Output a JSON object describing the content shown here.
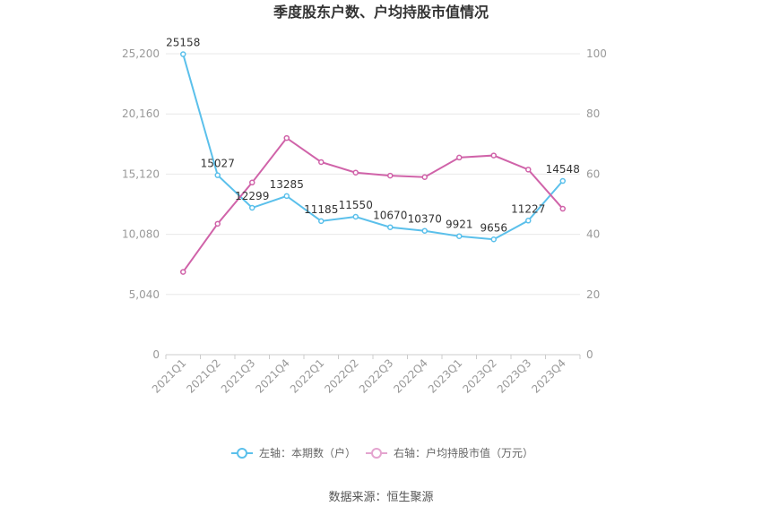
{
  "chart_data": {
    "type": "line",
    "title": "季度股东户数、户均持股市值情况",
    "categories": [
      "2021Q1",
      "2021Q2",
      "2021Q3",
      "2021Q4",
      "2022Q1",
      "2022Q2",
      "2022Q3",
      "2022Q4",
      "2023Q1",
      "2023Q2",
      "2023Q3",
      "2023Q4"
    ],
    "y_left": {
      "ticks": [
        "0",
        "5,040",
        "10,080",
        "15,120",
        "20,160",
        "25,200"
      ],
      "ylim": [
        0,
        25200
      ]
    },
    "y_right": {
      "ticks": [
        "0",
        "20",
        "40",
        "60",
        "80",
        "100"
      ],
      "ylim": [
        0,
        100
      ]
    },
    "series": [
      {
        "name": "左轴：本期数（户）",
        "axis": "left",
        "color": "#5bc0eb",
        "values": [
          25158,
          15027,
          12299,
          13285,
          11185,
          11550,
          10670,
          10370,
          9921,
          9656,
          11227,
          14548
        ],
        "labels": [
          "25158",
          "15027",
          "12299",
          "13285",
          "11185",
          "11550",
          "10670",
          "10370",
          "9921",
          "9656",
          "11227",
          "14548"
        ]
      },
      {
        "name": "右轴：户均持股市值（万元）",
        "axis": "right",
        "color": "#d063a9",
        "values": [
          27.5,
          43.5,
          57.2,
          72.0,
          64.0,
          60.5,
          59.5,
          59.0,
          65.5,
          66.2,
          61.5,
          48.5
        ]
      }
    ],
    "grid": true,
    "legend_position": "bottom"
  },
  "source": "数据来源：恒生聚源"
}
